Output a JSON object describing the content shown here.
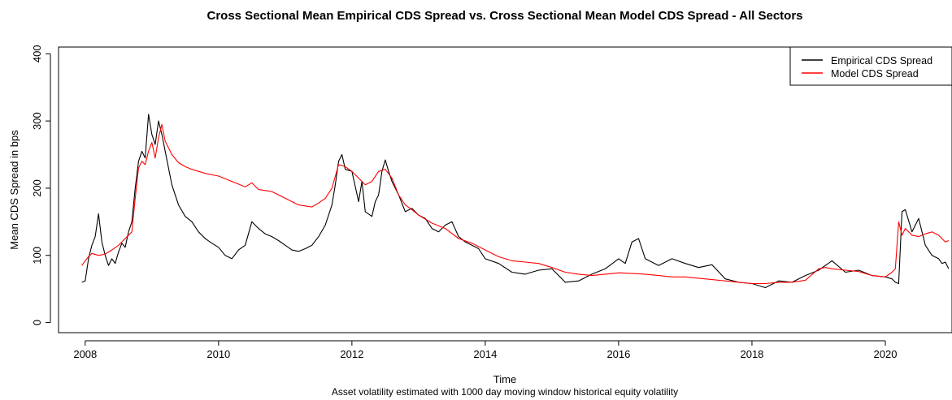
{
  "chart_data": {
    "type": "line",
    "title": "Cross Sectional Mean Empirical CDS Spread vs. Cross Sectional Mean Model CDS Spread - All Sectors",
    "xlabel": "Time",
    "subtitle": "Asset volatility estimated with 1000 day moving window historical equity volatility",
    "ylabel": "Mean CDS Spread in bps",
    "xlim": [
      2007.6,
      2021.0
    ],
    "ylim": [
      -15,
      410
    ],
    "x_ticks": [
      2008,
      2010,
      2012,
      2014,
      2016,
      2018,
      2020
    ],
    "x_tick_labels": [
      "2008",
      "2010",
      "2012",
      "2014",
      "2016",
      "2018",
      "2020"
    ],
    "y_ticks": [
      0,
      100,
      200,
      300,
      400
    ],
    "y_tick_labels": [
      "0",
      "100",
      "200",
      "300",
      "400"
    ],
    "grid": false,
    "legend_position": "top-right",
    "series": [
      {
        "name": "Empirical CDS Spread",
        "color": "#000000",
        "x": [
          2007.95,
          2008.0,
          2008.05,
          2008.1,
          2008.15,
          2008.2,
          2008.25,
          2008.3,
          2008.35,
          2008.4,
          2008.45,
          2008.5,
          2008.55,
          2008.6,
          2008.65,
          2008.7,
          2008.75,
          2008.8,
          2008.85,
          2008.9,
          2008.95,
          2009.0,
          2009.05,
          2009.1,
          2009.15,
          2009.2,
          2009.3,
          2009.4,
          2009.5,
          2009.6,
          2009.7,
          2009.8,
          2009.9,
          2010.0,
          2010.1,
          2010.2,
          2010.3,
          2010.4,
          2010.5,
          2010.6,
          2010.7,
          2010.8,
          2010.9,
          2011.0,
          2011.1,
          2011.2,
          2011.3,
          2011.4,
          2011.5,
          2011.6,
          2011.7,
          2011.75,
          2011.8,
          2011.85,
          2011.9,
          2012.0,
          2012.1,
          2012.15,
          2012.2,
          2012.3,
          2012.35,
          2012.4,
          2012.45,
          2012.5,
          2012.55,
          2012.6,
          2012.7,
          2012.8,
          2012.9,
          2013.0,
          2013.1,
          2013.2,
          2013.3,
          2013.4,
          2013.5,
          2013.6,
          2013.7,
          2013.8,
          2013.9,
          2014.0,
          2014.2,
          2014.4,
          2014.6,
          2014.8,
          2015.0,
          2015.2,
          2015.4,
          2015.6,
          2015.8,
          2016.0,
          2016.1,
          2016.2,
          2016.3,
          2016.4,
          2016.6,
          2016.8,
          2017.0,
          2017.2,
          2017.4,
          2017.6,
          2017.8,
          2018.0,
          2018.2,
          2018.4,
          2018.6,
          2018.8,
          2019.0,
          2019.1,
          2019.2,
          2019.4,
          2019.6,
          2019.8,
          2020.0,
          2020.1,
          2020.15,
          2020.2,
          2020.25,
          2020.3,
          2020.4,
          2020.5,
          2020.6,
          2020.7,
          2020.8,
          2020.85,
          2020.9,
          2020.95
        ],
        "values": [
          60,
          62,
          95,
          115,
          128,
          162,
          120,
          100,
          85,
          95,
          88,
          105,
          118,
          112,
          135,
          150,
          200,
          240,
          255,
          245,
          310,
          280,
          265,
          300,
          280,
          255,
          205,
          175,
          158,
          150,
          135,
          125,
          118,
          112,
          100,
          95,
          108,
          115,
          150,
          140,
          132,
          128,
          122,
          115,
          108,
          106,
          110,
          115,
          128,
          145,
          175,
          205,
          240,
          250,
          228,
          225,
          180,
          210,
          165,
          158,
          180,
          190,
          225,
          242,
          225,
          210,
          190,
          165,
          170,
          160,
          155,
          140,
          135,
          145,
          150,
          128,
          120,
          115,
          110,
          95,
          88,
          75,
          72,
          78,
          80,
          60,
          62,
          72,
          80,
          95,
          88,
          120,
          125,
          95,
          85,
          95,
          88,
          82,
          86,
          65,
          60,
          58,
          52,
          62,
          60,
          70,
          78,
          85,
          92,
          75,
          78,
          70,
          68,
          65,
          60,
          58,
          165,
          168,
          135,
          155,
          115,
          100,
          95,
          88,
          90,
          80
        ],
        "smoothing": 0
      },
      {
        "name": "Model CDS Spread",
        "color": "#ff0000",
        "x": [
          2007.95,
          2008.0,
          2008.05,
          2008.1,
          2008.2,
          2008.3,
          2008.4,
          2008.5,
          2008.6,
          2008.7,
          2008.75,
          2008.8,
          2008.85,
          2008.9,
          2008.95,
          2009.0,
          2009.05,
          2009.1,
          2009.15,
          2009.2,
          2009.3,
          2009.4,
          2009.5,
          2009.6,
          2009.8,
          2010.0,
          2010.2,
          2010.4,
          2010.5,
          2010.6,
          2010.8,
          2011.0,
          2011.2,
          2011.4,
          2011.5,
          2011.6,
          2011.7,
          2011.8,
          2011.9,
          2012.0,
          2012.1,
          2012.2,
          2012.3,
          2012.4,
          2012.5,
          2012.6,
          2012.7,
          2012.8,
          2012.9,
          2013.0,
          2013.2,
          2013.4,
          2013.6,
          2013.8,
          2014.0,
          2014.2,
          2014.4,
          2014.6,
          2014.8,
          2015.0,
          2015.2,
          2015.4,
          2015.6,
          2015.8,
          2016.0,
          2016.2,
          2016.4,
          2016.6,
          2016.8,
          2017.0,
          2017.2,
          2017.4,
          2017.6,
          2017.8,
          2018.0,
          2018.2,
          2018.4,
          2018.6,
          2018.8,
          2019.0,
          2019.1,
          2019.2,
          2019.4,
          2019.6,
          2019.8,
          2020.0,
          2020.1,
          2020.15,
          2020.2,
          2020.25,
          2020.3,
          2020.4,
          2020.5,
          2020.6,
          2020.7,
          2020.8,
          2020.9,
          2020.95
        ],
        "values": [
          85,
          92,
          98,
          103,
          100,
          102,
          108,
          115,
          125,
          135,
          185,
          230,
          240,
          235,
          255,
          268,
          245,
          275,
          295,
          270,
          250,
          238,
          232,
          228,
          222,
          218,
          210,
          202,
          208,
          198,
          195,
          185,
          175,
          172,
          178,
          185,
          200,
          235,
          232,
          225,
          215,
          205,
          210,
          225,
          228,
          215,
          190,
          175,
          168,
          160,
          148,
          140,
          125,
          118,
          108,
          98,
          92,
          90,
          88,
          82,
          75,
          72,
          70,
          72,
          74,
          73,
          72,
          70,
          68,
          68,
          66,
          64,
          62,
          60,
          58,
          58,
          60,
          60,
          63,
          80,
          82,
          80,
          78,
          76,
          70,
          68,
          75,
          80,
          150,
          130,
          140,
          130,
          128,
          132,
          135,
          130,
          120,
          122
        ],
        "smoothing": 0
      }
    ]
  }
}
